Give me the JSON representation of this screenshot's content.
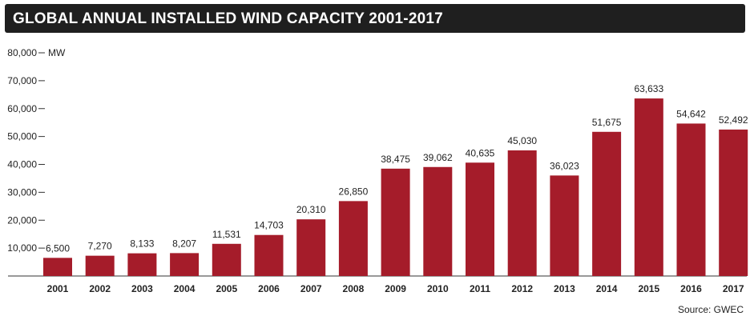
{
  "chart_data": {
    "type": "bar",
    "title": "GLOBAL ANNUAL INSTALLED WIND CAPACITY 2001-2017",
    "unit": "MW",
    "source": "Source: GWEC",
    "ylim": [
      0,
      80000
    ],
    "yticks": [
      10000,
      20000,
      30000,
      40000,
      50000,
      60000,
      70000,
      80000
    ],
    "ytick_labels": [
      "10,000",
      "20,000",
      "30,000",
      "40,000",
      "50,000",
      "60,000",
      "70,000",
      "80,000"
    ],
    "categories": [
      "2001",
      "2002",
      "2003",
      "2004",
      "2005",
      "2006",
      "2007",
      "2008",
      "2009",
      "2010",
      "2011",
      "2012",
      "2013",
      "2014",
      "2015",
      "2016",
      "2017"
    ],
    "values": [
      6500,
      7270,
      8133,
      8207,
      11531,
      14703,
      20310,
      26850,
      38475,
      39062,
      40635,
      45030,
      36023,
      51675,
      63633,
      54642,
      52492
    ],
    "value_labels": [
      "6,500",
      "7,270",
      "8,133",
      "8,207",
      "11,531",
      "14,703",
      "20,310",
      "26,850",
      "38,475",
      "39,062",
      "40,635",
      "45,030",
      "36,023",
      "51,675",
      "63,633",
      "54,642",
      "52,492"
    ],
    "bar_color": "#a51c2a",
    "grid": false
  }
}
